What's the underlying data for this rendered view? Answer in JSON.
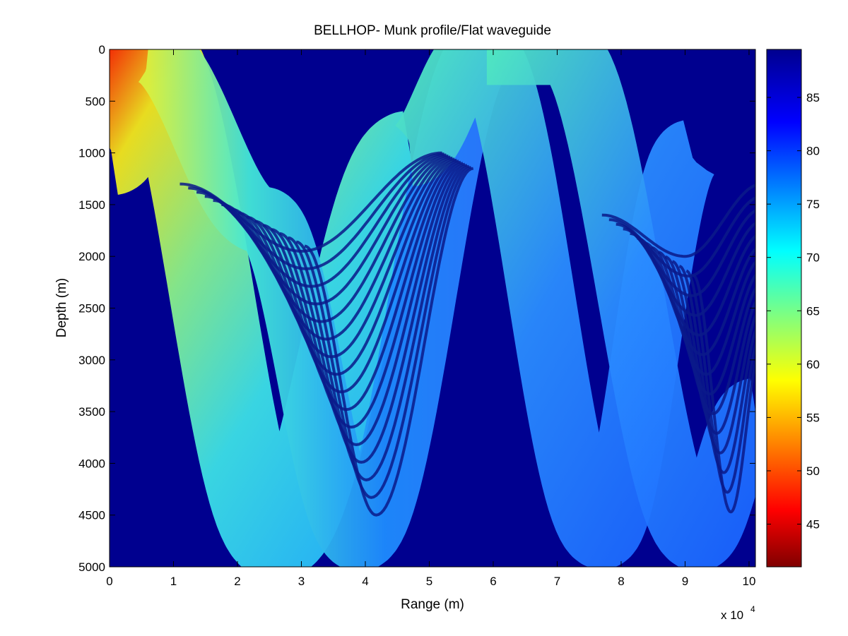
{
  "chart_data": {
    "type": "heatmap",
    "title": "BELLHOP- Munk profile/Flat waveguide",
    "xlabel": "Range (m)",
    "ylabel": "Depth (m)",
    "x_exponent_label": "x 10",
    "x_exponent": "4",
    "xlim": [
      0,
      10.1
    ],
    "ylim": [
      0,
      5000
    ],
    "y_reversed": true,
    "x_ticks": [
      "0",
      "1",
      "2",
      "3",
      "4",
      "5",
      "6",
      "7",
      "8",
      "9",
      "10"
    ],
    "y_ticks": [
      "0",
      "500",
      "1000",
      "1500",
      "2000",
      "2500",
      "3000",
      "3500",
      "4000",
      "4500",
      "5000"
    ],
    "colorbar": {
      "colormap": "jet-reversed",
      "range": [
        41,
        89.5
      ],
      "ticks": [
        "45",
        "50",
        "55",
        "60",
        "65",
        "70",
        "75",
        "80",
        "85"
      ]
    },
    "background_color": "#00008f",
    "ray_bands": [
      {
        "name": "band-1",
        "x": [
          0.03,
          0.6,
          2.6,
          4.7
        ],
        "depth": [
          1000,
          20,
          4720,
          1000
        ],
        "color": "#6fe8c8"
      },
      {
        "name": "band-2",
        "x": [
          0.6,
          2.4,
          3.9,
          5.9
        ],
        "depth": [
          20,
          1650,
          4720,
          20
        ],
        "color": "#1a5cff"
      },
      {
        "name": "band-3",
        "x": [
          4.7,
          5.8,
          7.7,
          9.1
        ],
        "depth": [
          1000,
          20,
          4700,
          1000
        ],
        "color": "#1a5cff"
      },
      {
        "name": "band-4",
        "x": [
          5.9,
          7.1,
          9.2,
          10.1
        ],
        "depth": [
          20,
          20,
          4720,
          3500
        ],
        "color": "#1a5cff"
      }
    ]
  }
}
